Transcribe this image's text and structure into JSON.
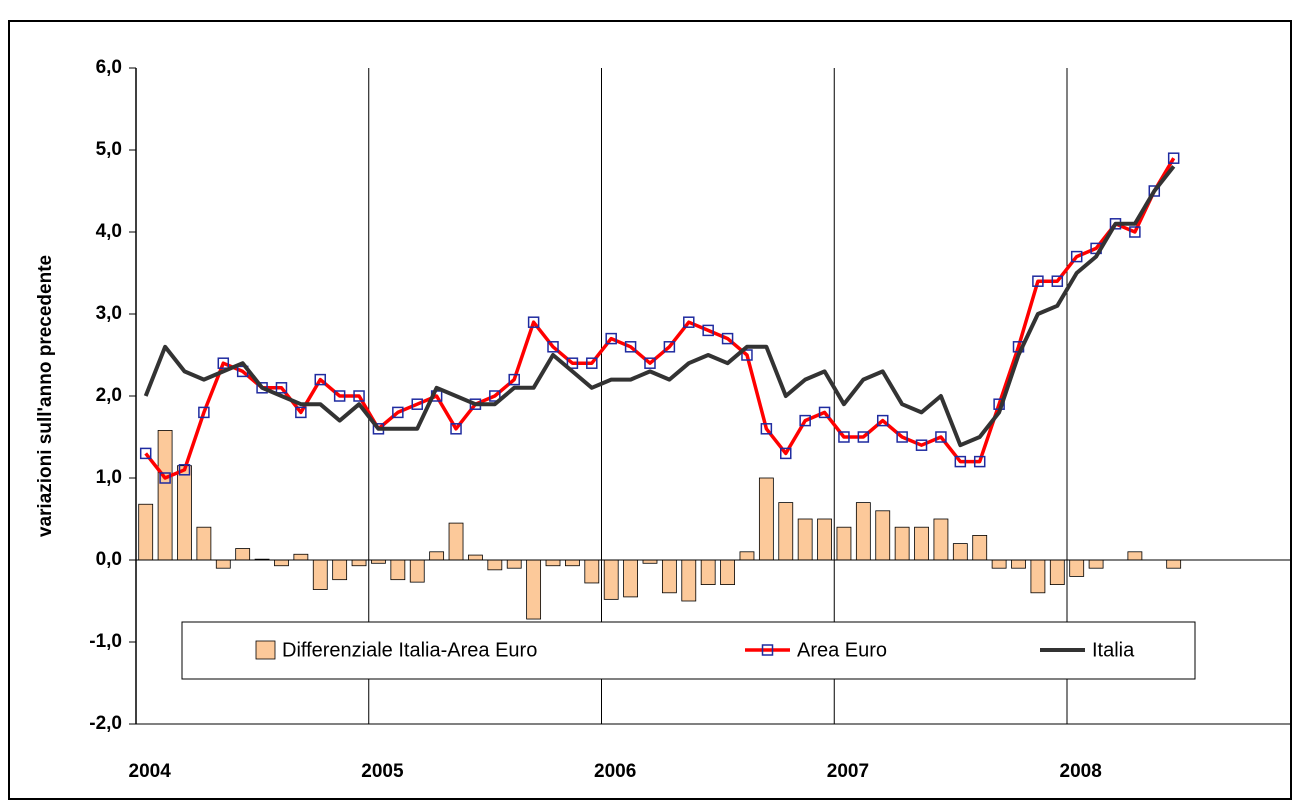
{
  "chart_data": {
    "type": "combo",
    "y_label": "variazioni sull'anno precedente",
    "categories": [
      "2004",
      null,
      null,
      null,
      null,
      null,
      null,
      null,
      null,
      null,
      null,
      null,
      "2005",
      null,
      null,
      null,
      null,
      null,
      null,
      null,
      null,
      null,
      null,
      null,
      "2006",
      null,
      null,
      null,
      null,
      null,
      null,
      null,
      null,
      null,
      null,
      null,
      "2007",
      null,
      null,
      null,
      null,
      null,
      null,
      null,
      null,
      null,
      null,
      null,
      "2008",
      null,
      null,
      null,
      null,
      null
    ],
    "series": [
      {
        "name": "Differenziale Italia-Area Euro",
        "type": "bar",
        "color": "#fcc99a",
        "values": [
          0.68,
          1.58,
          1.15,
          0.4,
          -0.1,
          0.14,
          0.01,
          -0.07,
          0.07,
          -0.36,
          -0.24,
          -0.07,
          -0.04,
          -0.24,
          -0.27,
          0.1,
          0.45,
          0.06,
          -0.12,
          -0.1,
          -0.72,
          -0.07,
          -0.07,
          -0.28,
          -0.48,
          -0.45,
          -0.04,
          -0.4,
          -0.5,
          -0.3,
          -0.3,
          0.1,
          1.0,
          0.7,
          0.5,
          0.5,
          0.4,
          0.7,
          0.6,
          0.4,
          0.4,
          0.5,
          0.2,
          0.3,
          -0.1,
          -0.1,
          -0.4,
          -0.3,
          -0.2,
          -0.1,
          0,
          0.1,
          0,
          -0.1
        ]
      },
      {
        "name": "Area Euro",
        "type": "line",
        "color": "#ff0000",
        "marker_color": "#1f2ba0",
        "values": [
          1.3,
          1.0,
          1.1,
          1.8,
          2.4,
          2.3,
          2.1,
          2.1,
          1.8,
          2.2,
          2.0,
          2.0,
          1.6,
          1.8,
          1.9,
          2.0,
          1.6,
          1.9,
          2.0,
          2.2,
          2.9,
          2.6,
          2.4,
          2.4,
          2.7,
          2.6,
          2.4,
          2.6,
          2.9,
          2.8,
          2.7,
          2.5,
          1.6,
          1.3,
          1.7,
          1.8,
          1.5,
          1.5,
          1.7,
          1.5,
          1.4,
          1.5,
          1.2,
          1.2,
          1.9,
          2.6,
          3.4,
          3.4,
          3.7,
          3.8,
          4.1,
          4.0,
          4.5,
          4.9
        ]
      },
      {
        "name": "Italia",
        "type": "line",
        "color": "#333333",
        "values": [
          2.0,
          2.6,
          2.3,
          2.2,
          2.3,
          2.4,
          2.1,
          2.0,
          1.9,
          1.9,
          1.7,
          1.9,
          1.6,
          1.6,
          1.6,
          2.1,
          2.0,
          1.9,
          1.9,
          2.1,
          2.1,
          2.5,
          2.3,
          2.1,
          2.2,
          2.2,
          2.3,
          2.2,
          2.4,
          2.5,
          2.4,
          2.6,
          2.6,
          2.0,
          2.2,
          2.3,
          1.9,
          2.2,
          2.3,
          1.9,
          1.8,
          2.0,
          1.4,
          1.5,
          1.8,
          2.5,
          3.0,
          3.1,
          3.5,
          3.7,
          4.1,
          4.1,
          4.5,
          4.8
        ]
      }
    ],
    "ylim": [
      -2,
      6
    ],
    "yticks": [
      {
        "value": -2,
        "label": "-2,0"
      },
      {
        "value": -1,
        "label": "-1,0"
      },
      {
        "value": 0,
        "label": "0,0"
      },
      {
        "value": 1,
        "label": "1,0"
      },
      {
        "value": 2,
        "label": "2,0"
      },
      {
        "value": 3,
        "label": "3,0"
      },
      {
        "value": 4,
        "label": "4,0"
      },
      {
        "value": 5,
        "label": "5,0"
      },
      {
        "value": 6,
        "label": "6,0"
      }
    ],
    "legend": "bottom",
    "grid": "x"
  }
}
